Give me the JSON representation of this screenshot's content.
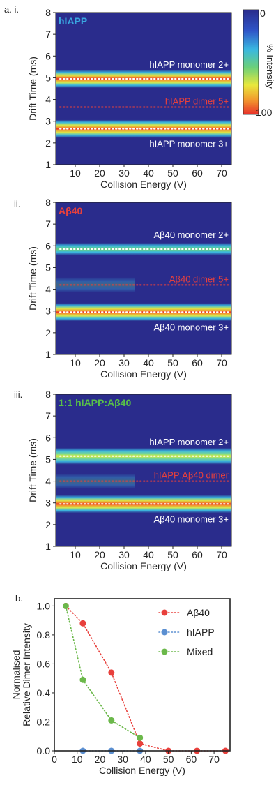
{
  "colors": {
    "dark_blue": "#2a2c8c",
    "red": "#e8403c",
    "blue_marker": "#5b8fd1",
    "green_marker": "#6bb84a",
    "legend_title_hiapp": "#3aa6e0",
    "legend_title_abeta": "#e8403c",
    "legend_title_mixed": "#58c048"
  },
  "colorbar": {
    "tick_top": "0",
    "tick_bottom": "100",
    "label": "% Intensity"
  },
  "chart_data": [
    {
      "type": "heatmap",
      "panel_label": "a. i.",
      "title": "hIAPP",
      "xlabel": "Collision Energy (V)",
      "ylabel": "Drift Time (ms)",
      "xlim": [
        2,
        74
      ],
      "ylim": [
        1,
        8
      ],
      "xticks": [
        10,
        20,
        30,
        40,
        50,
        60,
        70
      ],
      "yticks": [
        1,
        2,
        3,
        4,
        5,
        6,
        7,
        8
      ],
      "bands": [
        {
          "drift": 4.95,
          "label": "hIAPP monomer 2+",
          "peak": "red",
          "marker_line": "white"
        },
        {
          "drift": 3.65,
          "label": "hIAPP dimer 5+",
          "peak": "none",
          "marker_line": "red"
        },
        {
          "drift": 2.65,
          "label": "hIAPP monomer 3+",
          "peak": "red",
          "marker_line": "white"
        }
      ]
    },
    {
      "type": "heatmap",
      "panel_label": "ii.",
      "title": "Aβ40",
      "xlabel": "Collision Energy (V)",
      "ylabel": "Drift Time (ms)",
      "xlim": [
        2,
        74
      ],
      "ylim": [
        1,
        8
      ],
      "xticks": [
        10,
        20,
        30,
        40,
        50,
        60,
        70
      ],
      "yticks": [
        1,
        2,
        3,
        4,
        5,
        6,
        7,
        8
      ],
      "bands": [
        {
          "drift": 5.85,
          "label": "Aβ40 monomer 2+",
          "peak": "green",
          "marker_line": "white"
        },
        {
          "drift": 4.2,
          "label": "Aβ40 dimer 5+",
          "peak": "fading",
          "marker_line": "red"
        },
        {
          "drift": 2.95,
          "label": "Aβ40 monomer 3+",
          "peak": "red",
          "marker_line": "white"
        }
      ]
    },
    {
      "type": "heatmap",
      "panel_label": "iii.",
      "title": "1:1 hIAPP:Aβ40",
      "xlabel": "Collision Energy (V)",
      "ylabel": "Drift Time (ms)",
      "xlim": [
        2,
        74
      ],
      "ylim": [
        1,
        8
      ],
      "xticks": [
        10,
        20,
        30,
        40,
        50,
        60,
        70
      ],
      "yticks": [
        1,
        2,
        3,
        4,
        5,
        6,
        7,
        8
      ],
      "bands": [
        {
          "drift": 5.15,
          "label": "hIAPP monomer 2+",
          "peak": "yellow",
          "marker_line": "white"
        },
        {
          "drift": 4.0,
          "label": "hIAPP:Aβ40 dimer",
          "peak": "fading",
          "marker_line": "red"
        },
        {
          "drift": 2.95,
          "label": "Aβ40 monomer 3+",
          "peak": "red",
          "marker_line": "white"
        }
      ]
    },
    {
      "type": "scatter",
      "panel_label": "b.",
      "xlabel": "Collision Energy (V)",
      "ylabel": "Normalised Relative Dimer Intensity",
      "xlim": [
        0,
        77
      ],
      "ylim": [
        0,
        1.05
      ],
      "xticks": [
        0,
        10,
        20,
        30,
        40,
        50,
        60,
        70
      ],
      "yticks": [
        0.0,
        0.2,
        0.4,
        0.6,
        0.8,
        1.0
      ],
      "legend_position": "top-right",
      "series": [
        {
          "name": "Aβ40",
          "color": "#e8403c",
          "x": [
            5,
            12.5,
            25,
            37.5,
            50,
            62.5,
            75
          ],
          "y": [
            1.0,
            0.88,
            0.54,
            0.05,
            0.0,
            0.0,
            0.0
          ]
        },
        {
          "name": "hIAPP",
          "color": "#5b8fd1",
          "x": [
            12.5,
            25,
            37.5
          ],
          "y": [
            0.0,
            0.0,
            0.0
          ]
        },
        {
          "name": "Mixed",
          "color": "#6bb84a",
          "x": [
            5,
            12.5,
            25,
            37.5
          ],
          "y": [
            1.0,
            0.49,
            0.21,
            0.09
          ]
        }
      ]
    }
  ]
}
